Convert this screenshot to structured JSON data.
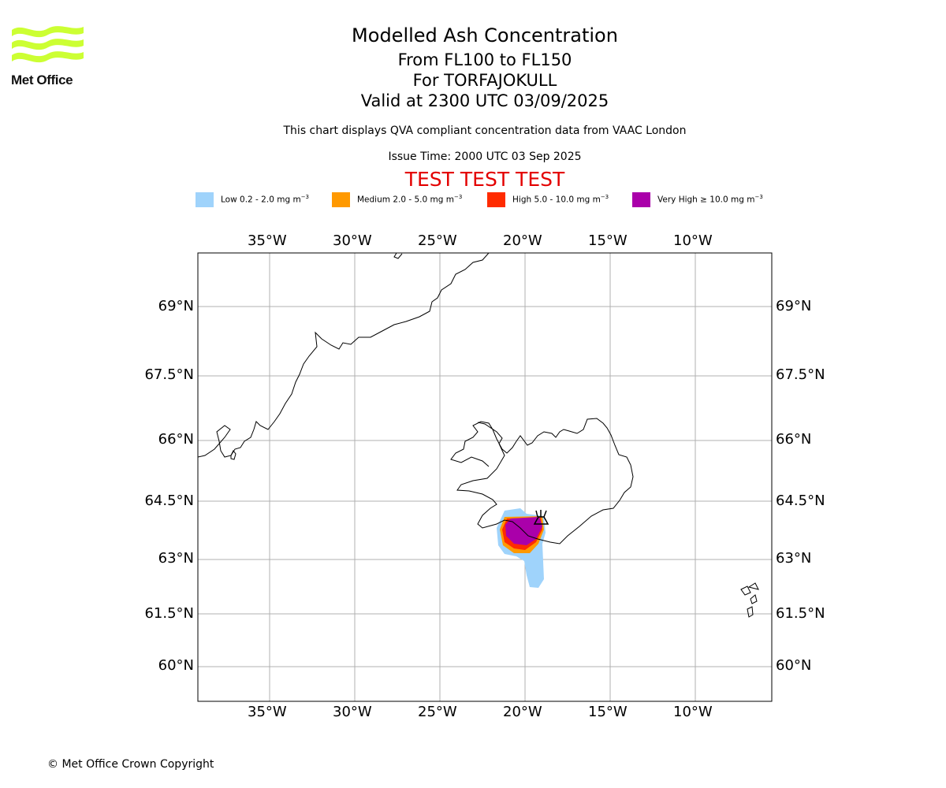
{
  "logo": {
    "text": "Met Office",
    "color": "#ccff33",
    "alt": "met-office-wave-logo"
  },
  "header": {
    "title": "Modelled Ash Concentration",
    "levels": "From FL100 to FL150",
    "volcano": "For TORFAJOKULL",
    "valid": "Valid at 2300 UTC 03/09/2025",
    "subtitle": "This chart displays QVA compliant concentration data from VAAC London",
    "issue_time": "Issue Time: 2000 UTC 03 Sep 2025",
    "test_banner": "TEST TEST TEST"
  },
  "legend": [
    {
      "label": "Low 0.2 - 2.0 mg m",
      "unit_sup": "−3",
      "color": "#9fd3fb"
    },
    {
      "label": "Medium 2.0 - 5.0 mg m",
      "unit_sup": "−3",
      "color": "#ff9900"
    },
    {
      "label": "High 5.0 - 10.0 mg m",
      "unit_sup": "−3",
      "color": "#ff2b00"
    },
    {
      "label": "Very High ≥ 10.0 mg m",
      "unit_sup": "−3",
      "color": "#aa00aa"
    }
  ],
  "map": {
    "lon_ticks": [
      "35°W",
      "30°W",
      "25°W",
      "20°W",
      "15°W",
      "10°W"
    ],
    "lat_ticks": [
      "69°N",
      "67.5°N",
      "66°N",
      "64.5°N",
      "63°N",
      "61.5°N",
      "60°N"
    ],
    "gridline_color": "#b0b0b0",
    "coastline_color": "#000000",
    "volcano_marker": "volcano-symbol"
  },
  "footer": {
    "copyright": "© Met Office Crown Copyright"
  }
}
